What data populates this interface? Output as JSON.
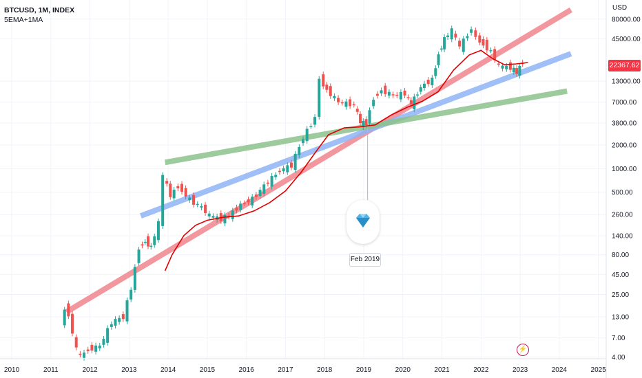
{
  "legend": {
    "symbol": "BTCUSD, 1M, INDEX",
    "indicator": "5EMA+1MA"
  },
  "price_axis": {
    "currency": "USD",
    "last_price": "22367.62",
    "last_price_color": "#f23645"
  },
  "annotation": {
    "date_label": "Feb 2019",
    "icon": "diamond-icon"
  },
  "event_marker": {
    "icon": "lightning-icon"
  },
  "colors": {
    "up": "#26a69a",
    "down": "#ef5350",
    "ma": "#e00000",
    "red_trend": "#f0868d",
    "blue_trend": "#8fb4f5",
    "green_trend": "#8cc28c"
  },
  "chart_data": {
    "type": "candlestick",
    "title": "",
    "y_scale": "log",
    "x_ticks": [
      "2010",
      "2011",
      "2012",
      "2013",
      "2014",
      "2015",
      "2016",
      "2017",
      "2018",
      "2019",
      "2020",
      "2021",
      "2022",
      "2023",
      "2024",
      "2025"
    ],
    "y_ticks": [
      "80000.00",
      "45000.00",
      "13000.00",
      "7000.00",
      "3800.00",
      "2000.00",
      "1000.00",
      "500.00",
      "260.00",
      "140.00",
      "80.00",
      "45.00",
      "25.00",
      "13.00",
      "7.00",
      "4.00"
    ],
    "x_range": [
      2009.7,
      2025.2
    ],
    "y_range": [
      3.8,
      140000
    ],
    "series": [
      {
        "name": "BTCUSD",
        "kind": "close",
        "x": [
          2011.3,
          2011.4,
          2011.5,
          2011.6,
          2011.7,
          2011.8,
          2011.9,
          2012.0,
          2012.3,
          2012.6,
          2012.9,
          2013.1,
          2013.3,
          2013.45,
          2013.6,
          2013.8,
          2013.92,
          2014.1,
          2014.3,
          2014.6,
          2014.9,
          2015.1,
          2015.4,
          2015.6,
          2015.9,
          2016.2,
          2016.5,
          2016.9,
          2017.2,
          2017.5,
          2017.8,
          2017.92,
          2018.1,
          2018.4,
          2018.8,
          2018.95,
          2019.1,
          2019.3,
          2019.5,
          2019.8,
          2020.1,
          2020.25,
          2020.5,
          2020.8,
          2020.95,
          2021.1,
          2021.3,
          2021.5,
          2021.8,
          2021.92,
          2022.1,
          2022.3,
          2022.5,
          2022.8,
          2022.95,
          2023.1
        ],
        "y": [
          9,
          17,
          14,
          8,
          5,
          4,
          4.5,
          5,
          5.5,
          11,
          13,
          30,
          100,
          120,
          100,
          200,
          800,
          450,
          600,
          400,
          320,
          250,
          230,
          250,
          350,
          410,
          600,
          950,
          1100,
          2500,
          4500,
          14000,
          10000,
          7000,
          6500,
          3800,
          3800,
          8000,
          10000,
          8500,
          9000,
          6500,
          11000,
          13700,
          29000,
          45000,
          57000,
          35000,
          61000,
          46000,
          38000,
          31000,
          20000,
          19400,
          16500,
          23000
        ]
      },
      {
        "name": "5EMA+1MA",
        "kind": "line",
        "x": [
          2013.92,
          2014.1,
          2014.4,
          2014.7,
          2015.0,
          2015.4,
          2015.8,
          2016.2,
          2016.6,
          2017.0,
          2017.4,
          2017.8,
          2018.1,
          2018.5,
          2018.9,
          2019.3,
          2019.7,
          2020.1,
          2020.5,
          2020.9,
          2021.3,
          2021.7,
          2022.0,
          2022.3,
          2022.6,
          2022.9,
          2023.2
        ],
        "y": [
          50,
          80,
          140,
          190,
          220,
          240,
          250,
          290,
          370,
          520,
          900,
          1700,
          2700,
          3300,
          3400,
          3600,
          4800,
          6000,
          7200,
          9500,
          18000,
          28000,
          32000,
          25000,
          21000,
          21500,
          22400
        ]
      }
    ],
    "trendlines": [
      {
        "name": "",
        "color": "red",
        "points": [
          [
            2011.4,
            15
          ],
          [
            2024.3,
            105000
          ]
        ]
      },
      {
        "name": "",
        "color": "blue",
        "points": [
          [
            2013.3,
            250
          ],
          [
            2024.3,
            29000
          ]
        ]
      },
      {
        "name": "",
        "color": "green",
        "points": [
          [
            2013.92,
            1200
          ],
          [
            2024.2,
            9700
          ]
        ]
      }
    ]
  }
}
